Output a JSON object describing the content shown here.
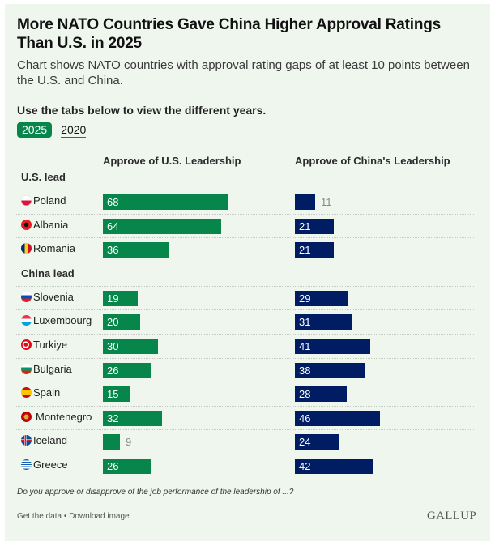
{
  "header": {
    "title": "More NATO Countries Gave China Higher Approval Ratings Than U.S. in 2025",
    "subtitle": "Chart shows NATO countries with approval rating gaps of at least 10 points between the U.S. and China.",
    "instruction": "Use the tabs below to view the different years."
  },
  "tabs": [
    {
      "label": "2025",
      "active": true
    },
    {
      "label": "2020",
      "active": false
    }
  ],
  "colors": {
    "us_bar": "#07864b",
    "china_bar": "#001d64",
    "background": "#eff6ee"
  },
  "chart_data": {
    "type": "bar",
    "orientation": "horizontal",
    "title": "More NATO Countries Gave China Higher Approval Ratings Than U.S. in 2025",
    "columns": [
      "Approve of U.S. Leadership",
      "Approve of China's Leadership"
    ],
    "groups": [
      {
        "label": "U.S. lead",
        "rows": [
          {
            "country": "Poland",
            "flag": "poland-flag",
            "us": 68,
            "china": 11
          },
          {
            "country": "Albania",
            "flag": "albania-flag",
            "us": 64,
            "china": 21
          },
          {
            "country": "Romania",
            "flag": "romania-flag",
            "us": 36,
            "china": 21
          }
        ]
      },
      {
        "label": "China lead",
        "rows": [
          {
            "country": "Slovenia",
            "flag": "slovenia-flag",
            "us": 19,
            "china": 29
          },
          {
            "country": "Luxembourg",
            "flag": "luxembourg-flag",
            "us": 20,
            "china": 31
          },
          {
            "country": "Turkiye",
            "flag": "turkiye-flag",
            "us": 30,
            "china": 41
          },
          {
            "country": "Bulgaria",
            "flag": "bulgaria-flag",
            "us": 26,
            "china": 38
          },
          {
            "country": "Spain",
            "flag": "spain-flag",
            "us": 15,
            "china": 28
          },
          {
            "country": "Montenegro",
            "flag": "montenegro-flag",
            "us": 32,
            "china": 46
          },
          {
            "country": "Iceland",
            "flag": "iceland-flag",
            "us": 9,
            "china": 24
          },
          {
            "country": "Greece",
            "flag": "greece-flag",
            "us": 26,
            "china": 42
          }
        ]
      }
    ],
    "xlim": [
      0,
      100
    ],
    "grid": false,
    "legend": "none"
  },
  "footer": {
    "question": "Do you approve or disapprove of the job performance of the leadership of ...?",
    "get_data": "Get the data",
    "bullet": "•",
    "download": "Download image",
    "logo": "GALLUP"
  }
}
